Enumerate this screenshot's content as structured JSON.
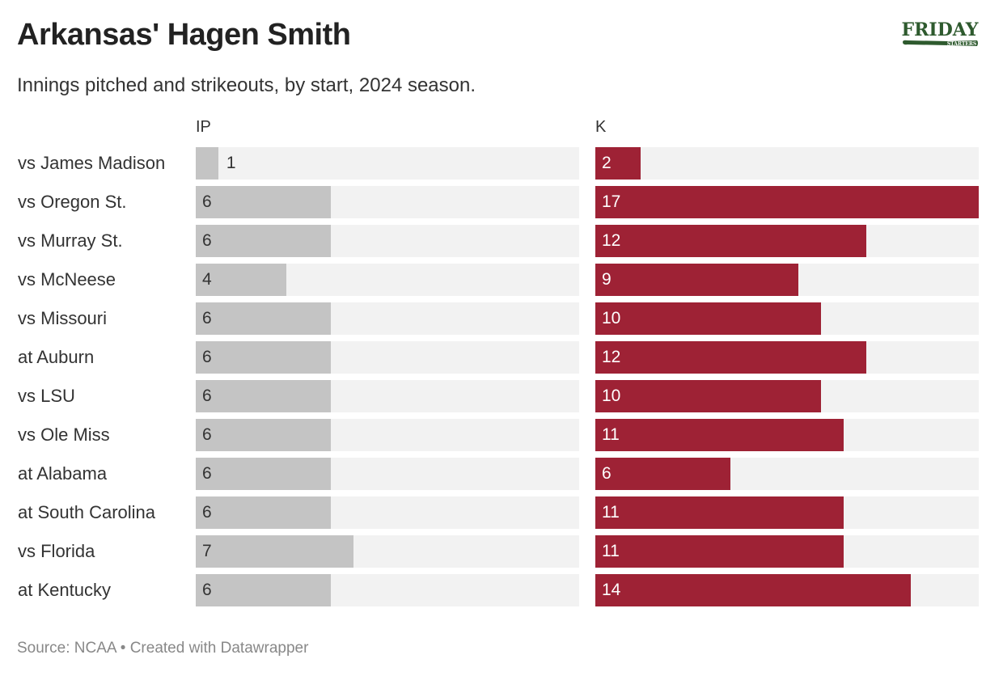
{
  "title": "Arkansas' Hagen Smith",
  "subtitle": "Innings pitched and strikeouts, by start, 2024 season.",
  "logo": {
    "text": "FRIDAY",
    "subtext": "STARTERS",
    "color": "#2e5a2e"
  },
  "source": "Source: NCAA • Created with Datawrapper",
  "chart_data": {
    "type": "bar",
    "orientation": "horizontal",
    "categories": [
      "vs James Madison",
      "vs Oregon St.",
      "vs Murray St.",
      "vs McNeese",
      "vs Missouri",
      "at Auburn",
      "vs LSU",
      "vs Ole Miss",
      "at Alabama",
      "at South Carolina",
      "vs Florida",
      "at Kentucky"
    ],
    "series": [
      {
        "name": "IP",
        "values": [
          1,
          6,
          6,
          4,
          6,
          6,
          6,
          6,
          6,
          6,
          7,
          6
        ],
        "color": "#c4c4c4"
      },
      {
        "name": "K",
        "values": [
          2,
          17,
          12,
          9,
          10,
          12,
          10,
          11,
          6,
          11,
          11,
          14
        ],
        "color": "#9e2235"
      }
    ],
    "xlim": [
      0,
      17
    ],
    "background_color": "#f2f2f2"
  }
}
